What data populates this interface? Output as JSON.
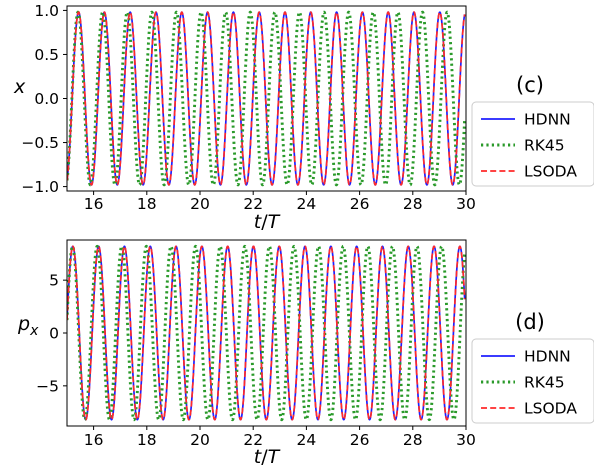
{
  "chart_data": [
    {
      "type": "line",
      "panel_label": "(c)",
      "xlabel": "t/T",
      "ylabel": "x",
      "xlim": [
        15,
        30
      ],
      "ylim": [
        -1.05,
        1.05
      ],
      "xticks": [
        "16",
        "18",
        "20",
        "22",
        "24",
        "26",
        "28",
        "30"
      ],
      "yticks": [
        "1.0",
        "0.5",
        "0.0",
        "−0.5",
        "−1.0"
      ],
      "legend_position": "right",
      "grid": false,
      "series": [
        {
          "name": "HDNN",
          "color": "#1f1fff",
          "style": "solid",
          "x_start": 15.0,
          "x_end": 29.95,
          "period": 0.97,
          "phase_start": -1.25,
          "amplitude": 0.98
        },
        {
          "name": "RK45",
          "color": "#2a9a2a",
          "style": "dotted",
          "x_start": 15.0,
          "x_end": 29.95,
          "period": 0.925,
          "phase_start": -1.25,
          "amplitude": 0.98
        },
        {
          "name": "LSODA",
          "color": "#ff2a2a",
          "style": "dashed",
          "x_start": 15.0,
          "x_end": 29.95,
          "period": 0.97,
          "phase_start": -1.25,
          "amplitude": 0.98
        }
      ]
    },
    {
      "type": "line",
      "panel_label": "(d)",
      "xlabel": "t/T",
      "ylabel": "p_x",
      "xlim": [
        15,
        30
      ],
      "ylim": [
        -8.8,
        8.8
      ],
      "xticks": [
        "16",
        "18",
        "20",
        "22",
        "24",
        "26",
        "28",
        "30"
      ],
      "yticks": [
        "5",
        "0",
        "−5"
      ],
      "legend_position": "right",
      "grid": false,
      "series": [
        {
          "name": "HDNN",
          "color": "#1f1fff",
          "style": "solid",
          "x_start": 15.0,
          "x_end": 29.95,
          "period": 0.97,
          "phase_start": 0.15,
          "amplitude": 8.2
        },
        {
          "name": "RK45",
          "color": "#2a9a2a",
          "style": "dotted",
          "x_start": 15.0,
          "x_end": 29.95,
          "period": 0.925,
          "phase_start": 0.15,
          "amplitude": 8.2
        },
        {
          "name": "LSODA",
          "color": "#ff2a2a",
          "style": "dashed",
          "x_start": 15.0,
          "x_end": 29.95,
          "period": 0.97,
          "phase_start": 0.15,
          "amplitude": 8.2
        }
      ]
    }
  ]
}
